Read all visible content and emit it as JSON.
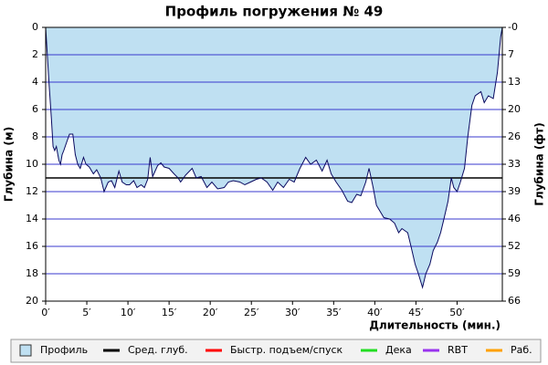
{
  "chart_data": {
    "type": "area",
    "title": "Профиль погружения № 49",
    "y_label": "Глубина (м)",
    "y2_label": "Глубина (фт)",
    "x_label": "Длительность (мин.)",
    "xlim": [
      0,
      55.5
    ],
    "xticks": [
      {
        "value": 0,
        "label": "0′"
      },
      {
        "value": 5,
        "label": "5′"
      },
      {
        "value": 10,
        "label": "10′"
      },
      {
        "value": 15,
        "label": "15′"
      },
      {
        "value": 20,
        "label": "20′"
      },
      {
        "value": 25,
        "label": "25′"
      },
      {
        "value": 30,
        "label": "30′"
      },
      {
        "value": 35,
        "label": "35′"
      },
      {
        "value": 40,
        "label": "40′"
      },
      {
        "value": 45,
        "label": "45′"
      },
      {
        "value": 50,
        "label": "50′"
      }
    ],
    "ylim": [
      0,
      20
    ],
    "yticks": [
      0,
      2,
      4,
      6,
      8,
      10,
      12,
      14,
      16,
      18,
      20
    ],
    "y2lim": [
      0,
      65.62
    ],
    "y2ticks": [
      {
        "value": 0,
        "label": "-0"
      },
      {
        "value": 6.562,
        "label": "7"
      },
      {
        "value": 13.12,
        "label": "13"
      },
      {
        "value": 19.69,
        "label": "20"
      },
      {
        "value": 26.25,
        "label": "26"
      },
      {
        "value": 32.81,
        "label": "33"
      },
      {
        "value": 39.37,
        "label": "39"
      },
      {
        "value": 45.93,
        "label": "46"
      },
      {
        "value": 52.49,
        "label": "52"
      },
      {
        "value": 59.06,
        "label": "59"
      },
      {
        "value": 65.62,
        "label": "66"
      }
    ],
    "y_inverted": true,
    "grid": true,
    "grid_color": "#3a3acf",
    "avg_depth": 11,
    "avg_color": "#000000",
    "x": [
      0,
      0.2,
      0.4,
      0.7,
      0.9,
      1.1,
      1.3,
      1.6,
      1.8,
      2,
      2.2,
      2.6,
      2.9,
      3.3,
      3.6,
      3.9,
      4.2,
      4.6,
      4.9,
      5.3,
      5.8,
      6.2,
      6.7,
      7.1,
      7.6,
      8,
      8.4,
      8.9,
      9.3,
      9.8,
      10.2,
      10.7,
      11.1,
      11.6,
      12,
      12.4,
      12.7,
      13,
      13.6,
      14,
      14.4,
      15,
      15.6,
      16.1,
      16.4,
      17,
      17.8,
      18.3,
      18.9,
      19.6,
      20.2,
      20.9,
      21.7,
      22.2,
      22.8,
      23.6,
      24.2,
      24.9,
      25.6,
      26.2,
      26.9,
      27.6,
      28.2,
      28.9,
      29.6,
      30.2,
      30.9,
      31.6,
      32.2,
      32.9,
      33.6,
      34.2,
      34.7,
      35.3,
      36,
      36.7,
      37.2,
      37.8,
      38.3,
      38.9,
      39.3,
      39.8,
      40.2,
      40.7,
      41.1,
      41.8,
      42.4,
      42.9,
      43.3,
      44,
      44.4,
      44.9,
      45.3,
      45.8,
      46.2,
      46.7,
      47.1,
      47.6,
      48,
      48.4,
      48.9,
      49.3,
      49.6,
      50,
      50.4,
      50.9,
      51.3,
      51.8,
      52.2,
      52.9,
      53.3,
      53.8,
      54.4,
      54.9,
      55.3,
      55.5
    ],
    "series": [
      {
        "name": "Профиль",
        "color": "#bfe0f2",
        "line_color": "#0a0a60",
        "values": [
          0,
          2,
          4,
          6.7,
          8.7,
          9,
          8.7,
          9.7,
          10,
          9.3,
          9,
          8.3,
          7.8,
          7.8,
          9.3,
          10,
          10.3,
          9.5,
          10,
          10.2,
          10.7,
          10.4,
          11,
          12,
          11.3,
          11.2,
          11.7,
          10.5,
          11.3,
          11.5,
          11.5,
          11.2,
          11.7,
          11.5,
          11.7,
          11.1,
          9.5,
          10.9,
          10.1,
          9.9,
          10.2,
          10.3,
          10.7,
          11,
          11.3,
          10.8,
          10.3,
          11,
          10.9,
          11.7,
          11.3,
          11.8,
          11.7,
          11.3,
          11.2,
          11.3,
          11.5,
          11.3,
          11.1,
          11,
          11.3,
          11.9,
          11.3,
          11.7,
          11.1,
          11.3,
          10.3,
          9.5,
          10,
          9.7,
          10.5,
          9.7,
          10.7,
          11.3,
          11.9,
          12.7,
          12.8,
          12.2,
          12.3,
          11.3,
          10.3,
          11.7,
          13,
          13.5,
          13.9,
          14,
          14.3,
          15,
          14.7,
          15,
          16,
          17.3,
          18,
          19,
          18,
          17.3,
          16.3,
          15.7,
          15,
          14,
          12.7,
          11,
          11.7,
          12,
          11.3,
          10.3,
          8,
          5.7,
          5,
          4.7,
          5.5,
          5,
          5.2,
          3.3,
          0.7,
          0
        ]
      }
    ],
    "legend": [
      {
        "name": "Профиль",
        "color": "#bfe0f2",
        "swatch": "box"
      },
      {
        "name": "Сред. глуб.",
        "color": "#000000",
        "swatch": "line"
      },
      {
        "name": "Быстр. подъем/спуск",
        "color": "#ff0000",
        "swatch": "line"
      },
      {
        "name": "Дека",
        "color": "#22dd22",
        "swatch": "line"
      },
      {
        "name": "RBT",
        "color": "#9933ee",
        "swatch": "line"
      },
      {
        "name": "Раб.",
        "color": "#ffa000",
        "swatch": "line"
      }
    ]
  }
}
